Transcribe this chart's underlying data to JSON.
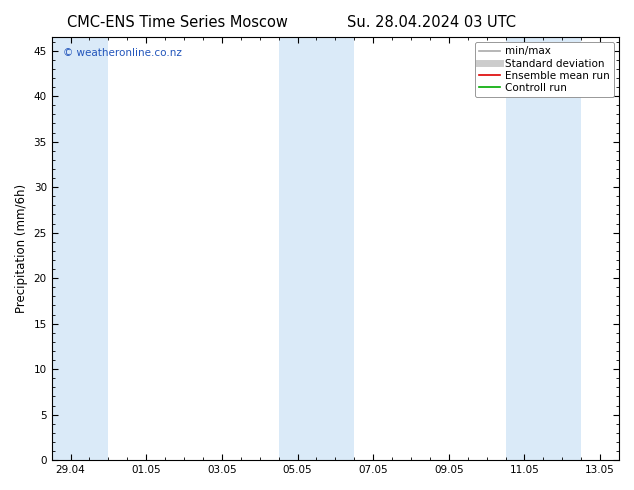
{
  "title_left": "CMC-ENS Time Series Moscow",
  "title_right": "Su. 28.04.2024 03 UTC",
  "ylabel": "Precipitation (mm/6h)",
  "ylim": [
    0,
    46.5
  ],
  "yticks": [
    0,
    5,
    10,
    15,
    20,
    25,
    30,
    35,
    40,
    45
  ],
  "background_color": "#ffffff",
  "plot_bg_color": "#ffffff",
  "copyright_text": "© weatheronline.co.nz",
  "copyright_color": "#2255bb",
  "shaded_bands": [
    {
      "xstart": -0.5,
      "xend": 1.0,
      "color": "#daeaf8"
    },
    {
      "xstart": 5.5,
      "xend": 6.5,
      "color": "#daeaf8"
    },
    {
      "xstart": 6.5,
      "xend": 7.5,
      "color": "#daeaf8"
    },
    {
      "xstart": 11.5,
      "xend": 12.5,
      "color": "#daeaf8"
    },
    {
      "xstart": 12.5,
      "xend": 13.5,
      "color": "#daeaf8"
    }
  ],
  "legend_entries": [
    {
      "label": "min/max",
      "color": "#aaaaaa",
      "lw": 1.2,
      "ls": "-"
    },
    {
      "label": "Standard deviation",
      "color": "#cccccc",
      "lw": 5,
      "ls": "-"
    },
    {
      "label": "Ensemble mean run",
      "color": "#dd0000",
      "lw": 1.2,
      "ls": "-"
    },
    {
      "label": "Controll run",
      "color": "#00aa00",
      "lw": 1.2,
      "ls": "-"
    }
  ],
  "xtick_labels": [
    "29.04",
    "01.05",
    "03.05",
    "05.05",
    "07.05",
    "09.05",
    "11.05",
    "13.05"
  ],
  "xtick_positions": [
    0,
    2,
    4,
    6,
    8,
    10,
    12,
    14
  ],
  "xmin": -0.5,
  "xmax": 14.5,
  "title_fontsize": 10.5,
  "tick_fontsize": 7.5,
  "ylabel_fontsize": 8.5,
  "legend_fontsize": 7.5
}
